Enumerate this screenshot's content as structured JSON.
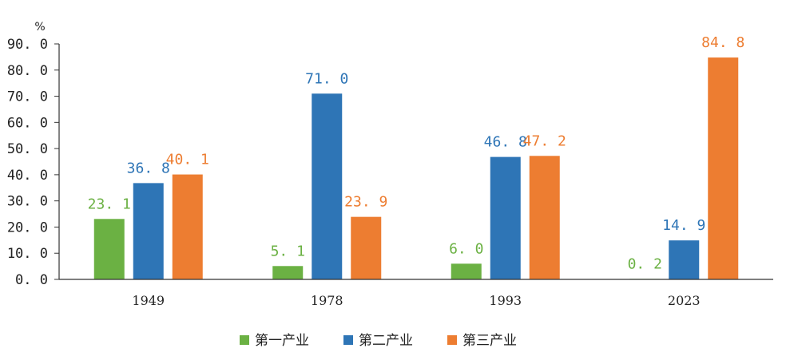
{
  "chart_data": {
    "type": "bar",
    "unit": "%",
    "categories": [
      "1949",
      "1978",
      "1993",
      "2023"
    ],
    "ylim": [
      0,
      90
    ],
    "yticks": [
      "0. 0",
      "10. 0",
      "20. 0",
      "30. 0",
      "40. 0",
      "50. 0",
      "60. 0",
      "70. 0",
      "80. 0",
      "90. 0"
    ],
    "series": [
      {
        "name": "第一产业",
        "color": "#6bb143",
        "values": [
          23.1,
          5.1,
          6.0,
          0.2
        ],
        "labels": [
          "23. 1",
          "5. 1",
          "6. 0",
          "0. 2"
        ]
      },
      {
        "name": "第二产业",
        "color": "#2e75b6",
        "values": [
          36.8,
          71.0,
          46.8,
          14.9
        ],
        "labels": [
          "36. 8",
          "71. 0",
          "46. 8",
          "14. 9"
        ]
      },
      {
        "name": "第三产业",
        "color": "#ed7d31",
        "values": [
          40.1,
          23.9,
          47.2,
          84.8
        ],
        "labels": [
          "40. 1",
          "23. 9",
          "47. 2",
          "84. 8"
        ]
      }
    ],
    "legend_position": "bottom-center"
  }
}
